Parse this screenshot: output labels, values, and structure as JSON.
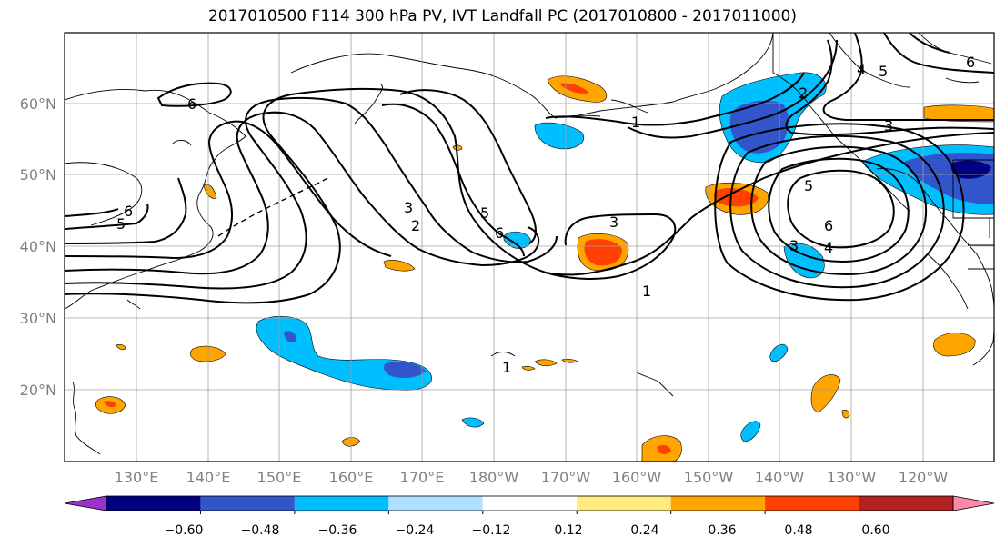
{
  "title": "2017010500 F114 300 hPa PV, IVT Landfall PC (2017010800 - 2017011000)",
  "lat_labels": [
    "60°N",
    "50°N",
    "40°N",
    "30°N",
    "20°N"
  ],
  "lon_labels": [
    "130°E",
    "140°E",
    "150°E",
    "160°E",
    "170°E",
    "180°W",
    "170°W",
    "160°W",
    "150°W",
    "140°W",
    "130°W",
    "120°W"
  ],
  "colorbar": {
    "tick_labels": [
      "−0.60",
      "−0.48",
      "−0.36",
      "−0.24",
      "−0.12",
      "0.12",
      "0.24",
      "0.36",
      "0.48",
      "0.60"
    ],
    "colors": [
      "#9933cc",
      "#000080",
      "#3355cc",
      "#00bfff",
      "#b0e0ff",
      "#ffffff",
      "#ffeb80",
      "#ffa500",
      "#ff4000",
      "#b22222",
      "#ff88aa"
    ]
  },
  "contour_labels": [
    "6",
    "6",
    "5",
    "5",
    "3",
    "2",
    "6",
    "3",
    "1",
    "1",
    "2",
    "4",
    "5",
    "6",
    "3",
    "5",
    "6",
    "4",
    "3",
    "1"
  ],
  "colors": {
    "land_outline": "#000000",
    "grid": "#a0a0a0",
    "pv_contour": "#000000",
    "axis_label": "#808080"
  }
}
